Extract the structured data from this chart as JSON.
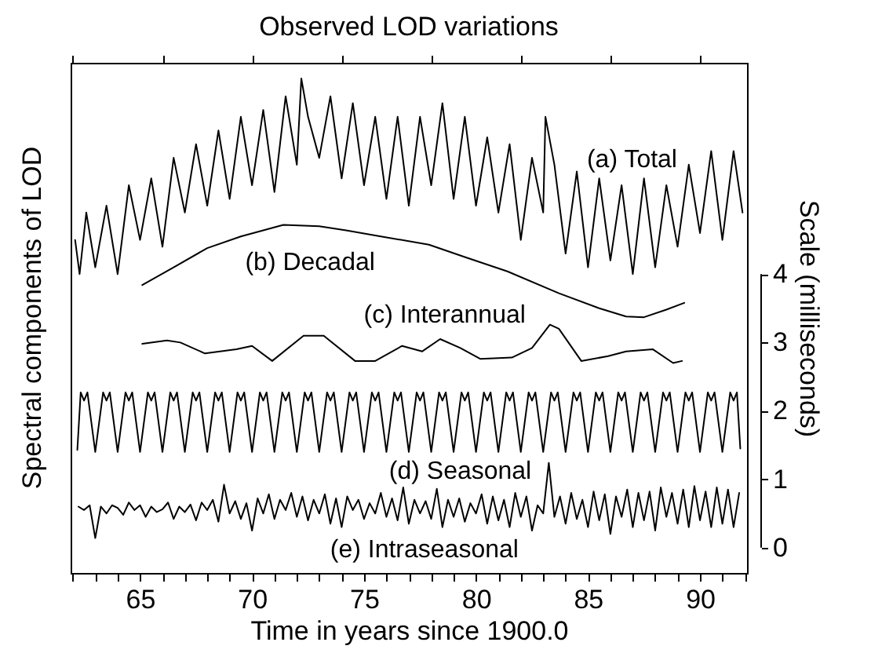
{
  "chart_data": {
    "type": "line",
    "title": "Observed LOD variations",
    "xlabel": "Time in years since 1900.0",
    "ylabel": "Scale (milliseconds)",
    "xlim": [
      61.9,
      92.1
    ],
    "xticks": [
      {
        "value": 62,
        "label": null
      },
      {
        "value": 63,
        "label": null
      },
      {
        "value": 64,
        "label": null
      },
      65,
      {
        "value": 66,
        "label": null
      },
      {
        "value": 67,
        "label": null
      },
      {
        "value": 68,
        "label": null
      },
      {
        "value": 69,
        "label": null
      },
      70,
      {
        "value": 71,
        "label": null
      },
      {
        "value": 72,
        "label": null
      },
      {
        "value": 73,
        "label": null
      },
      {
        "value": 74,
        "label": null
      },
      75,
      {
        "value": 76,
        "label": null
      },
      {
        "value": 77,
        "label": null
      },
      {
        "value": 78,
        "label": null
      },
      {
        "value": 79,
        "label": null
      },
      80,
      {
        "value": 81,
        "label": null
      },
      {
        "value": 82,
        "label": null
      },
      {
        "value": 83,
        "label": null
      },
      {
        "value": 84,
        "label": null
      },
      85,
      {
        "value": 86,
        "label": null
      },
      {
        "value": 87,
        "label": null
      },
      {
        "value": 88,
        "label": null
      },
      {
        "value": 89,
        "label": null
      },
      90,
      {
        "value": 91,
        "label": null
      },
      {
        "value": 92,
        "label": null
      }
    ],
    "ylim": [
      -0.37,
      7.09
    ],
    "yticks": [
      0,
      1,
      2,
      3,
      4
    ],
    "grid": false,
    "legend": false,
    "series": [
      {
        "name": "(a) Total",
        "color": "#000000",
        "x": [
          62.1,
          62.3,
          62.6,
          63.0,
          63.5,
          64.0,
          64.5,
          65.0,
          65.5,
          66.0,
          66.5,
          67.0,
          67.5,
          68.0,
          68.5,
          69.0,
          69.5,
          70.0,
          70.5,
          71.0,
          71.5,
          72.0,
          72.2,
          72.5,
          73.0,
          73.5,
          74.0,
          74.5,
          75.0,
          75.5,
          76.0,
          76.5,
          77.0,
          77.5,
          78.0,
          78.5,
          79.0,
          79.5,
          80.0,
          80.5,
          81.0,
          81.5,
          82.0,
          82.5,
          83.0,
          83.1,
          83.5,
          84.0,
          84.5,
          85.0,
          85.5,
          86.0,
          86.5,
          87.0,
          87.5,
          88.0,
          88.5,
          89.0,
          89.5,
          90.0,
          90.5,
          91.0,
          91.5,
          91.9
        ],
        "values": [
          4.5,
          4.0,
          4.9,
          4.1,
          5.0,
          4.0,
          5.3,
          4.5,
          5.4,
          4.4,
          5.7,
          4.9,
          5.9,
          5.0,
          6.1,
          5.1,
          6.3,
          5.3,
          6.4,
          5.2,
          6.6,
          5.6,
          6.86,
          6.3,
          5.7,
          6.6,
          5.4,
          6.5,
          5.3,
          6.3,
          5.1,
          6.3,
          5.0,
          6.3,
          5.3,
          6.5,
          5.1,
          6.3,
          5.0,
          6.0,
          4.9,
          5.9,
          4.5,
          5.7,
          4.9,
          6.3,
          5.6,
          4.3,
          5.5,
          4.1,
          5.4,
          4.2,
          5.3,
          4.0,
          5.4,
          4.1,
          5.3,
          4.4,
          5.6,
          4.6,
          5.8,
          4.5,
          5.8,
          4.9
        ]
      },
      {
        "name": "(b) Decadal",
        "color": "#000000",
        "x": [
          65.1,
          66.5,
          68.0,
          69.5,
          71.4,
          73.0,
          74.2,
          75.6,
          77.9,
          79.5,
          81.4,
          83.7,
          85.5,
          86.7,
          87.5,
          88.5,
          89.3
        ],
        "values": [
          3.84,
          4.1,
          4.38,
          4.55,
          4.72,
          4.7,
          4.64,
          4.56,
          4.43,
          4.25,
          4.04,
          3.72,
          3.5,
          3.38,
          3.37,
          3.48,
          3.58
        ]
      },
      {
        "name": "(c) Interannual",
        "color": "#000000",
        "x": [
          65.1,
          66.2,
          66.8,
          67.9,
          69.3,
          70.0,
          70.9,
          72.3,
          73.2,
          74.6,
          75.5,
          76.7,
          77.6,
          78.4,
          79.3,
          80.2,
          81.6,
          82.5,
          83.3,
          83.7,
          84.7,
          85.9,
          86.7,
          87.9,
          88.8,
          89.2
        ],
        "values": [
          2.98,
          3.03,
          3.0,
          2.84,
          2.9,
          2.95,
          2.73,
          3.1,
          3.1,
          2.73,
          2.73,
          2.95,
          2.87,
          3.05,
          2.92,
          2.76,
          2.78,
          2.92,
          3.26,
          3.2,
          2.73,
          2.8,
          2.87,
          2.9,
          2.7,
          2.73
        ]
      },
      {
        "name": "(d) Seasonal",
        "color": "#000000",
        "x": [
          62.2,
          62.35,
          62.5,
          62.65,
          63.0,
          63.35,
          63.5,
          63.65,
          64.0,
          64.35,
          64.5,
          64.65,
          65.0,
          65.35,
          65.5,
          65.65,
          66.0,
          66.35,
          66.5,
          66.65,
          67.0,
          67.35,
          67.5,
          67.65,
          68.0,
          68.35,
          68.5,
          68.65,
          69.0,
          69.35,
          69.5,
          69.65,
          70.0,
          70.35,
          70.5,
          70.65,
          71.0,
          71.35,
          71.5,
          71.65,
          72.0,
          72.35,
          72.5,
          72.65,
          73.0,
          73.35,
          73.5,
          73.65,
          74.0,
          74.35,
          74.5,
          74.65,
          75.0,
          75.35,
          75.5,
          75.65,
          76.0,
          76.35,
          76.5,
          76.65,
          77.0,
          77.35,
          77.5,
          77.65,
          78.0,
          78.35,
          78.5,
          78.65,
          79.0,
          79.35,
          79.5,
          79.65,
          80.0,
          80.35,
          80.5,
          80.65,
          81.0,
          81.35,
          81.5,
          81.65,
          82.0,
          82.35,
          82.5,
          82.65,
          83.0,
          83.35,
          83.5,
          83.65,
          84.0,
          84.35,
          84.5,
          84.65,
          85.0,
          85.35,
          85.5,
          85.65,
          86.0,
          86.35,
          86.5,
          86.65,
          87.0,
          87.35,
          87.5,
          87.65,
          88.0,
          88.35,
          88.5,
          88.65,
          89.0,
          89.35,
          89.5,
          89.65,
          90.0,
          90.35,
          90.5,
          90.65,
          91.0,
          91.35,
          91.5,
          91.65,
          91.8
        ],
        "values": [
          1.43,
          2.27,
          2.15,
          2.27,
          1.4,
          2.27,
          2.15,
          2.27,
          1.4,
          2.27,
          2.15,
          2.27,
          1.4,
          2.27,
          2.15,
          2.27,
          1.4,
          2.27,
          2.15,
          2.27,
          1.4,
          2.27,
          2.15,
          2.27,
          1.4,
          2.27,
          2.15,
          2.27,
          1.4,
          2.27,
          2.15,
          2.27,
          1.4,
          2.27,
          2.15,
          2.27,
          1.4,
          2.27,
          2.15,
          2.27,
          1.4,
          2.27,
          2.15,
          2.27,
          1.4,
          2.27,
          2.15,
          2.27,
          1.4,
          2.27,
          2.15,
          2.27,
          1.4,
          2.27,
          2.15,
          2.27,
          1.4,
          2.27,
          2.15,
          2.27,
          1.4,
          2.27,
          2.15,
          2.27,
          1.4,
          2.27,
          2.15,
          2.27,
          1.4,
          2.27,
          2.15,
          2.27,
          1.4,
          2.27,
          2.15,
          2.27,
          1.4,
          2.27,
          2.15,
          2.27,
          1.4,
          2.27,
          2.15,
          2.27,
          1.4,
          2.27,
          2.15,
          2.27,
          1.4,
          2.27,
          2.15,
          2.27,
          1.4,
          2.27,
          2.15,
          2.27,
          1.4,
          2.27,
          2.15,
          2.27,
          1.4,
          2.27,
          2.15,
          2.27,
          1.4,
          2.27,
          2.15,
          2.27,
          1.4,
          2.27,
          2.15,
          2.27,
          1.4,
          2.27,
          2.15,
          2.27,
          1.4,
          2.27,
          2.15,
          2.27,
          1.45
        ]
      },
      {
        "name": "(e) Intraseasonal",
        "color": "#000000",
        "x": [
          62.25,
          62.5,
          62.75,
          63.0,
          63.25,
          63.5,
          63.75,
          64.0,
          64.25,
          64.5,
          64.75,
          65.0,
          65.25,
          65.5,
          65.75,
          66.0,
          66.25,
          66.5,
          66.75,
          67.0,
          67.25,
          67.5,
          67.75,
          68.0,
          68.25,
          68.5,
          68.75,
          69.0,
          69.25,
          69.5,
          69.75,
          70.0,
          70.25,
          70.5,
          70.75,
          71.0,
          71.25,
          71.5,
          71.75,
          72.0,
          72.25,
          72.5,
          72.75,
          73.0,
          73.25,
          73.5,
          73.75,
          74.0,
          74.25,
          74.5,
          74.75,
          75.0,
          75.25,
          75.5,
          75.75,
          76.0,
          76.25,
          76.5,
          76.75,
          77.0,
          77.25,
          77.5,
          77.75,
          78.0,
          78.25,
          78.5,
          78.75,
          79.0,
          79.25,
          79.5,
          79.75,
          80.0,
          80.25,
          80.5,
          80.75,
          81.0,
          81.25,
          81.5,
          81.75,
          82.0,
          82.25,
          82.5,
          82.75,
          83.0,
          83.25,
          83.5,
          83.75,
          84.0,
          84.25,
          84.5,
          84.75,
          85.0,
          85.25,
          85.5,
          85.75,
          86.0,
          86.25,
          86.5,
          86.75,
          87.0,
          87.25,
          87.5,
          87.75,
          88.0,
          88.25,
          88.5,
          88.75,
          89.0,
          89.25,
          89.5,
          89.75,
          90.0,
          90.25,
          90.5,
          90.75,
          91.0,
          91.25,
          91.5,
          91.75
        ],
        "values": [
          0.6,
          0.55,
          0.62,
          0.14,
          0.6,
          0.5,
          0.62,
          0.58,
          0.48,
          0.66,
          0.55,
          0.62,
          0.45,
          0.6,
          0.52,
          0.56,
          0.66,
          0.42,
          0.6,
          0.52,
          0.63,
          0.4,
          0.66,
          0.55,
          0.7,
          0.38,
          0.92,
          0.5,
          0.68,
          0.42,
          0.65,
          0.25,
          0.72,
          0.5,
          0.78,
          0.42,
          0.7,
          0.55,
          0.8,
          0.45,
          0.75,
          0.4,
          0.7,
          0.5,
          0.78,
          0.35,
          0.72,
          0.3,
          0.75,
          0.55,
          0.7,
          0.42,
          0.65,
          0.5,
          0.8,
          0.45,
          0.72,
          0.4,
          0.88,
          0.35,
          0.7,
          0.5,
          0.68,
          0.42,
          0.86,
          0.3,
          0.7,
          0.45,
          0.72,
          0.38,
          0.65,
          0.5,
          0.78,
          0.35,
          0.75,
          0.4,
          0.7,
          0.3,
          0.8,
          0.45,
          0.75,
          0.25,
          0.62,
          0.5,
          1.24,
          0.45,
          0.75,
          0.35,
          0.8,
          0.42,
          0.7,
          0.3,
          0.82,
          0.4,
          0.78,
          0.2,
          0.75,
          0.45,
          0.85,
          0.3,
          0.8,
          0.4,
          0.82,
          0.25,
          0.88,
          0.45,
          0.8,
          0.35,
          0.85,
          0.3,
          0.9,
          0.4,
          0.82,
          0.3,
          0.88,
          0.35,
          0.85,
          0.3,
          0.8
        ]
      }
    ],
    "annotations": [
      "Spectral components of LOD"
    ]
  }
}
